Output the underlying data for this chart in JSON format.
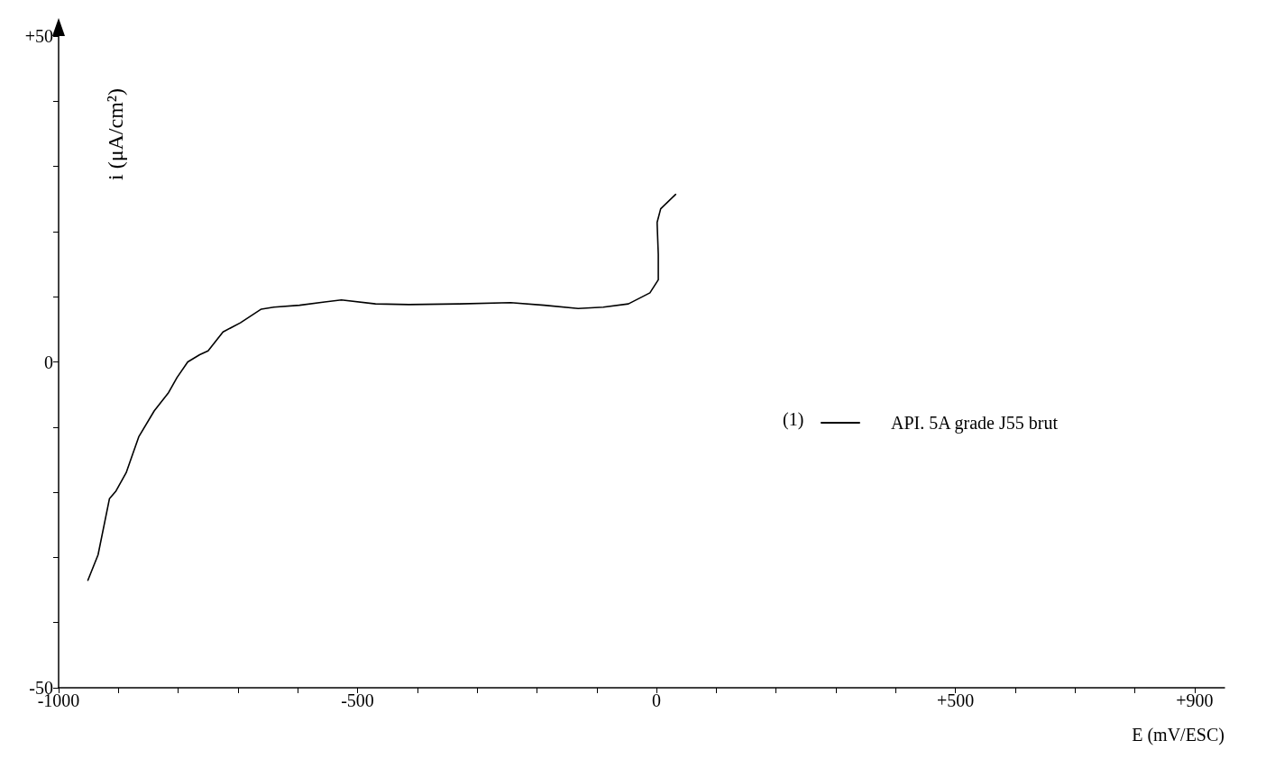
{
  "chart_data": {
    "type": "line",
    "xlabel": "E (mV/ESC)",
    "ylabel": "i (μA/cm²)",
    "annotations": [
      "(1)"
    ],
    "x": [
      -951,
      -934,
      -915,
      -904,
      -887,
      -866,
      -840,
      -816,
      -802,
      -784,
      -764,
      -750,
      -725,
      -696,
      -661,
      -640,
      -597,
      -555,
      -527,
      -470,
      -414,
      -329,
      -244,
      -188,
      -131,
      -89,
      -47,
      -11,
      3,
      3,
      1,
      7,
      32
    ],
    "series": [
      {
        "name": "API. 5A grade J55 brut",
        "color": "#000000",
        "values": [
          -33.5,
          -29.6,
          -21,
          -19.8,
          -17,
          -11.5,
          -7.5,
          -4.7,
          -2.4,
          0,
          1.1,
          1.7,
          4.6,
          6,
          8.1,
          8.4,
          8.7,
          9.2,
          9.5,
          8.9,
          8.8,
          8.9,
          9.1,
          8.7,
          8.2,
          8.4,
          8.9,
          10.6,
          12.6,
          16.5,
          21.4,
          23.5,
          25.7
        ]
      }
    ],
    "xlim": [
      -1000,
      950
    ],
    "xticks": [
      -1000,
      {
        "value": -900,
        "label": null
      },
      {
        "value": -800,
        "label": null
      },
      {
        "value": -700,
        "label": null
      },
      {
        "value": -600,
        "label": null
      },
      -500,
      {
        "value": -400,
        "label": null
      },
      {
        "value": -300,
        "label": null
      },
      {
        "value": -200,
        "label": null
      },
      {
        "value": -100,
        "label": null
      },
      0,
      {
        "value": 100,
        "label": null
      },
      {
        "value": 200,
        "label": null
      },
      {
        "value": 300,
        "label": null
      },
      {
        "value": 400,
        "label": null
      },
      {
        "value": 500,
        "label": "+500"
      },
      {
        "value": 600,
        "label": null
      },
      {
        "value": 700,
        "label": null
      },
      {
        "value": 800,
        "label": null
      },
      {
        "value": 900,
        "label": "+900"
      }
    ],
    "ylim": [
      -50,
      50
    ],
    "yticks": [
      -50,
      {
        "value": -40,
        "label": null
      },
      {
        "value": -30,
        "label": null
      },
      {
        "value": -20,
        "label": null
      },
      {
        "value": -10,
        "label": null
      },
      0,
      {
        "value": 10,
        "label": null
      },
      {
        "value": 20,
        "label": null
      },
      {
        "value": 30,
        "label": null
      },
      {
        "value": 40,
        "label": null
      },
      {
        "value": 50,
        "label": "+50"
      }
    ],
    "grid": false,
    "legend": "right",
    "marker": "none",
    "line_style": "solid"
  }
}
